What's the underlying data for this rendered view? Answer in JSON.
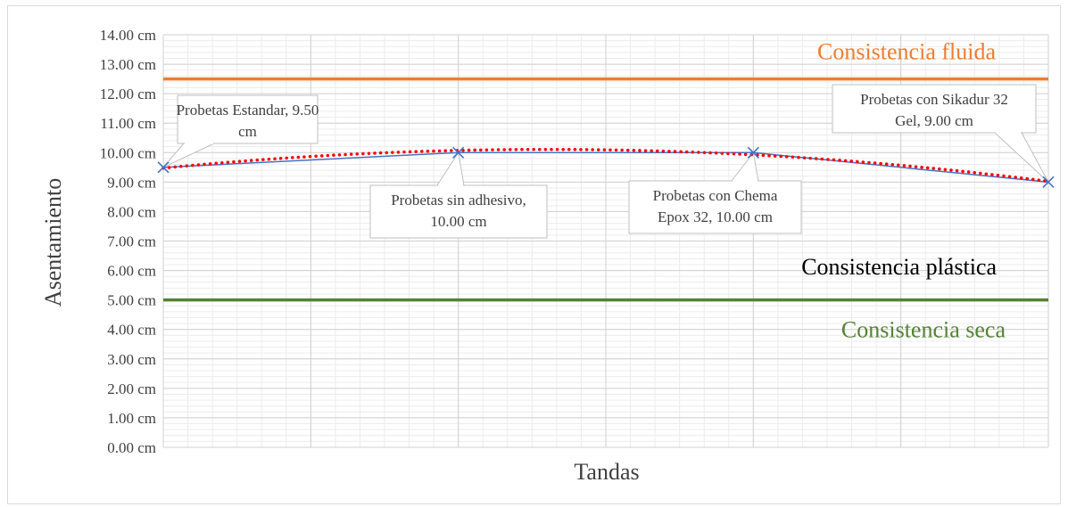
{
  "chart_data": {
    "type": "line",
    "xlabel": "Tandas",
    "ylabel": "Asentamiento",
    "ylim": [
      0,
      14
    ],
    "y_tick_step": 1,
    "y_tick_suffix": " cm",
    "grid": true,
    "series": [
      {
        "x": [
          1,
          2,
          3,
          4
        ],
        "values": [
          9.5,
          10.0,
          10.0,
          9.0
        ],
        "color": "#4472c4",
        "marker": "x",
        "trendline": {
          "type": "polynomial",
          "color": "#ff0000",
          "style": "dotted"
        }
      }
    ],
    "data_labels": [
      {
        "text": "Probetas Estandar, 9.50 cm",
        "lines": [
          "Probetas Estandar, 9.50",
          "cm"
        ]
      },
      {
        "text": "Probetas sin adhesivo, 10.00 cm",
        "lines": [
          "Probetas sin adhesivo,",
          "10.00 cm"
        ]
      },
      {
        "text": "Probetas con Chema Epox 32, 10.00 cm",
        "lines": [
          "Probetas con Chema",
          "Epox 32, 10.00 cm"
        ]
      },
      {
        "text": "Probetas con Sikadur 32 Gel, 9.00 cm",
        "lines": [
          "Probetas con Sikadur 32",
          "Gel, 9.00 cm"
        ]
      }
    ],
    "reference_lines": [
      {
        "y": 12.5,
        "label": "Consistencia fluida",
        "color": "#ed7d31"
      },
      {
        "y": 5.0,
        "label": "Consistencia seca",
        "color": "#548235"
      }
    ],
    "region_labels": [
      {
        "label": "Consistencia plástica",
        "color": "#000000"
      }
    ]
  }
}
